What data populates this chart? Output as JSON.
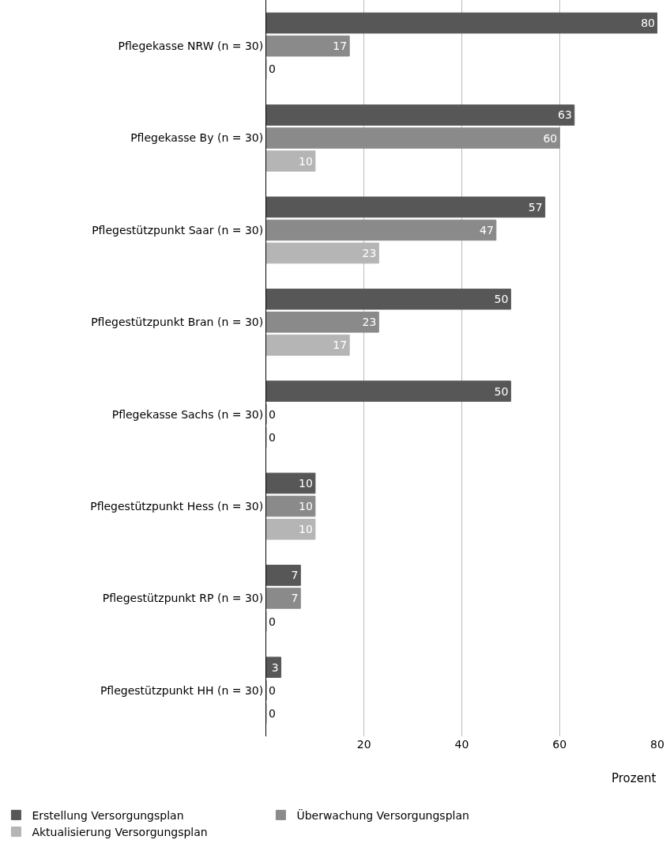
{
  "chart_data": {
    "type": "bar",
    "orientation": "horizontal",
    "categories": [
      "Pflegekasse NRW (n = 30)",
      "Pflegekasse By (n = 30)",
      "Pflegestützpunkt Saar (n = 30)",
      "Pflegestützpunkt Bran (n = 30)",
      "Pflegekasse Sachs (n = 30)",
      "Pflegestützpunkt Hess (n = 30)",
      "Pflegestützpunkt RP (n = 30)",
      "Pflegestützpunkt HH (n = 30)"
    ],
    "series": [
      {
        "name": "Erstellung Versorgungsplan",
        "color": "#575757",
        "values": [
          80,
          63,
          57,
          50,
          50,
          10,
          7,
          3
        ]
      },
      {
        "name": "Überwachung Versorgungsplan",
        "color": "#8a8a8a",
        "values": [
          17,
          60,
          47,
          23,
          0,
          10,
          7,
          0
        ]
      },
      {
        "name": "Aktualisierung Versorgungsplan",
        "color": "#b5b5b5",
        "values": [
          0,
          10,
          23,
          17,
          0,
          10,
          0,
          0
        ]
      }
    ],
    "xlabel": "Prozent",
    "xlim": [
      0,
      80
    ],
    "xticks": [
      20,
      40,
      60,
      80
    ],
    "grid": "x",
    "legend": "bottom left",
    "data_labels": true
  }
}
